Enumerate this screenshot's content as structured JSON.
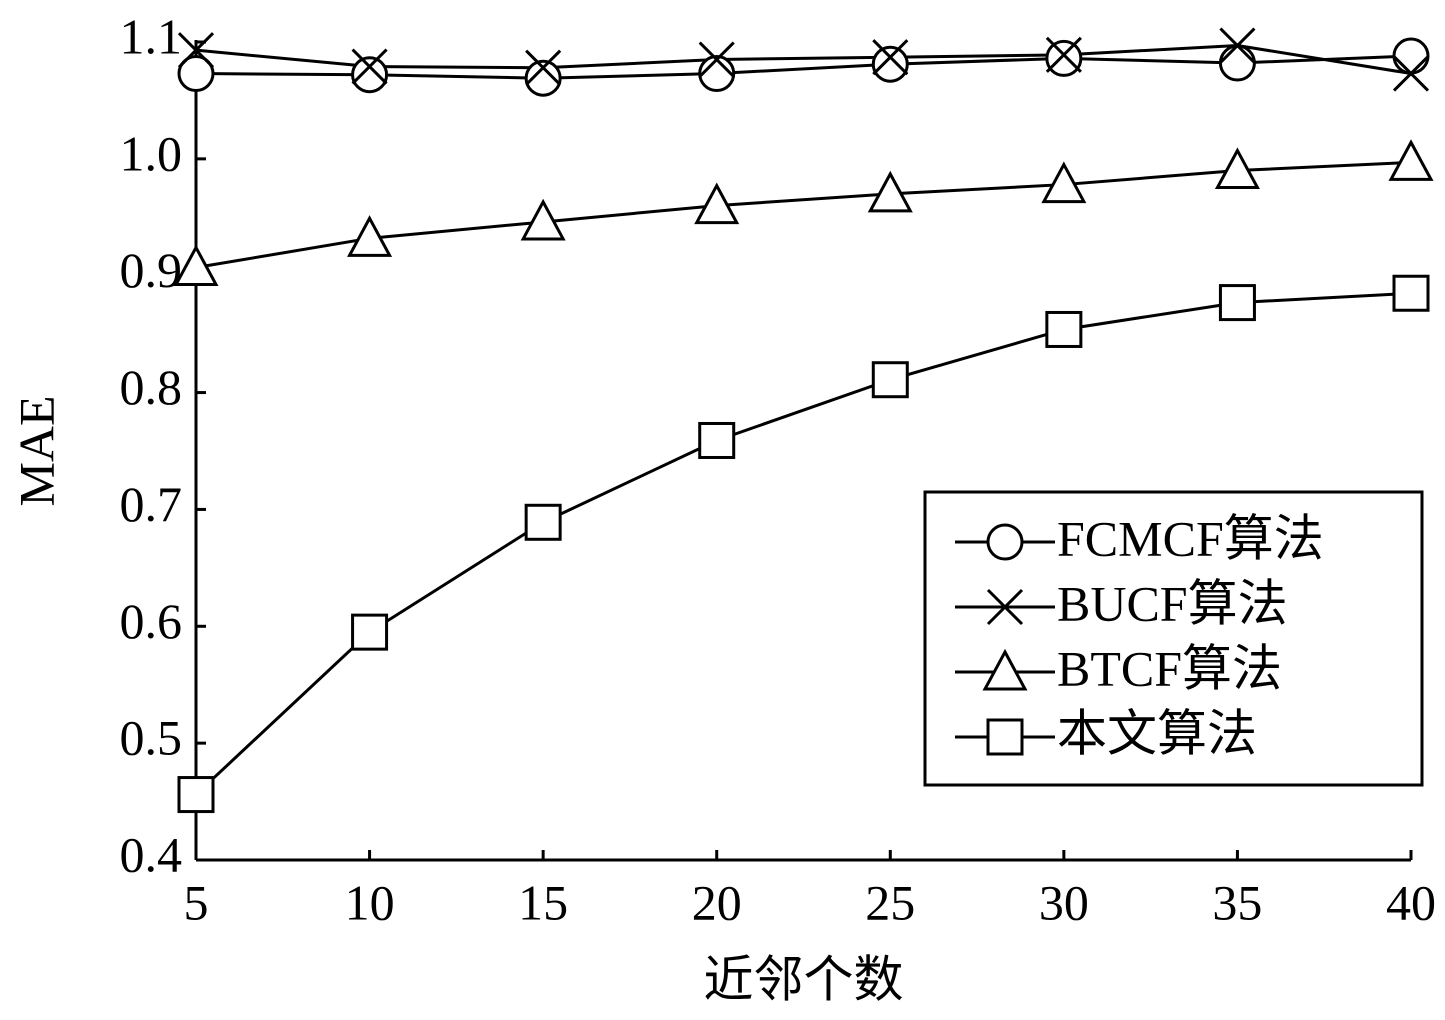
{
  "chart_data": {
    "type": "line",
    "x_label": "近邻个数",
    "y_label": "MAE",
    "x": [
      5,
      10,
      15,
      20,
      25,
      30,
      35,
      40
    ],
    "series": [
      {
        "name": "FCMCF算法",
        "color": "#000000",
        "marker": "circle",
        "values": [
          1.073,
          1.072,
          1.069,
          1.073,
          1.081,
          1.086,
          1.082,
          1.088
        ]
      },
      {
        "name": "BUCF算法",
        "color": "#000000",
        "marker": "x",
        "values": [
          1.093,
          1.079,
          1.078,
          1.085,
          1.087,
          1.089,
          1.097,
          1.073
        ]
      },
      {
        "name": "BTCF算法",
        "color": "#000000",
        "marker": "triangle",
        "values": [
          0.907,
          0.932,
          0.946,
          0.96,
          0.97,
          0.978,
          0.99,
          0.997
        ]
      },
      {
        "name": "本文算法",
        "color": "#000000",
        "marker": "square",
        "values": [
          0.456,
          0.595,
          0.689,
          0.759,
          0.811,
          0.854,
          0.877,
          0.885
        ]
      }
    ],
    "xlim": [
      5,
      40
    ],
    "xticks": [
      5,
      10,
      15,
      20,
      25,
      30,
      35,
      40
    ],
    "ylim": [
      0.4,
      1.1
    ],
    "yticks": [
      0.4,
      0.5,
      0.6,
      0.7,
      0.8,
      0.9,
      {
        "value": 1,
        "label": "1.0"
      },
      1.1
    ],
    "grid": false,
    "legend": "lower right"
  }
}
